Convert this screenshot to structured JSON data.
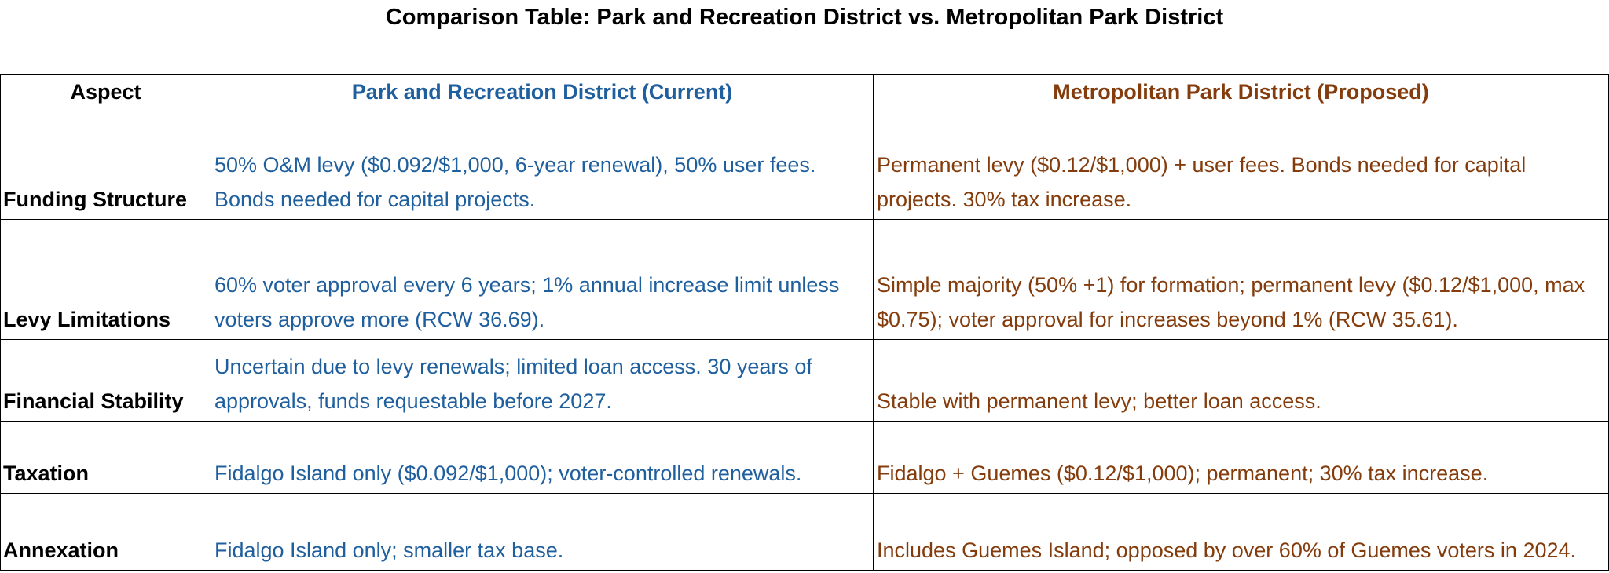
{
  "title": "Comparison Table: Park and Recreation District vs. Metropolitan Park District",
  "table": {
    "header": [
      "Aspect",
      "Park and Recreation District (Current)",
      "Metropolitan Park District (Proposed)"
    ],
    "rows": [
      [
        "Funding Structure",
        "50% O&M levy ($0.092/$1,000, 6-year renewal), 50% user fees. Bonds needed for capital projects.",
        "Permanent levy ($0.12/$1,000) + user fees. Bonds needed for capital projects. 30% tax increase."
      ],
      [
        "Levy Limitations",
        "60% voter approval every 6 years; 1% annual increase limit unless voters approve more (RCW 36.69).",
        "Simple majority (50% +1) for formation; permanent levy ($0.12/$1,000, max $0.75); voter approval for increases beyond 1% (RCW 35.61)."
      ],
      [
        "Financial Stability",
        "Uncertain due to levy renewals; limited loan access. 30 years of approvals, funds requestable before 2027.",
        "Stable with permanent levy; better loan access."
      ],
      [
        "Taxation",
        "Fidalgo Island only ($0.092/$1,000); voter-controlled renewals.",
        "Fidalgo + Guemes ($0.12/$1,000); permanent; 30% tax increase."
      ],
      [
        "Annexation",
        "Fidalgo Island only; smaller tax base.",
        "Includes Guemes Island; opposed by over 60% of Guemes voters in 2024."
      ]
    ]
  }
}
